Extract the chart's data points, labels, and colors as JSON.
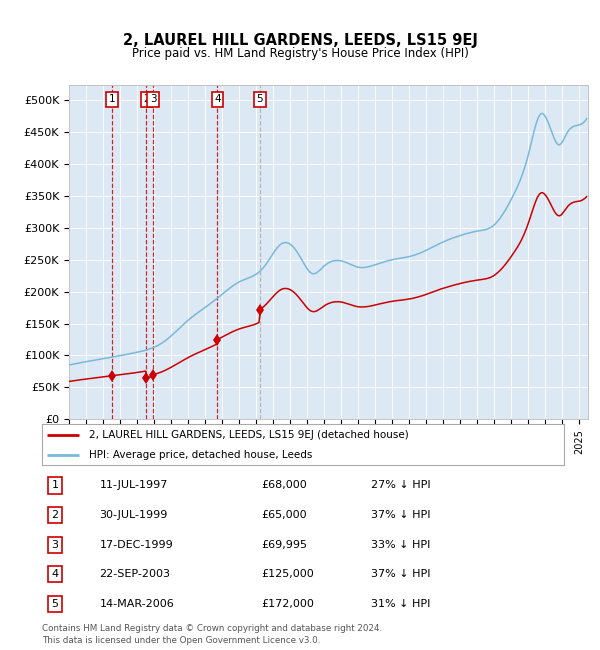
{
  "title": "2, LAUREL HILL GARDENS, LEEDS, LS15 9EJ",
  "subtitle": "Price paid vs. HM Land Registry's House Price Index (HPI)",
  "bg_color": "#dce9f5",
  "hpi_color": "#7ab8d9",
  "price_color": "#cc0000",
  "sale_marker_color": "#cc0000",
  "dashed_red": "#cc0000",
  "dashed_gray": "#aaaaaa",
  "yticks": [
    0,
    50000,
    100000,
    150000,
    200000,
    250000,
    300000,
    350000,
    400000,
    450000,
    500000
  ],
  "ytick_labels": [
    "£0",
    "£50K",
    "£100K",
    "£150K",
    "£200K",
    "£250K",
    "£300K",
    "£350K",
    "£400K",
    "£450K",
    "£500K"
  ],
  "sales": [
    {
      "num": 1,
      "date": "1997-07-11",
      "price": 68000
    },
    {
      "num": 2,
      "date": "1999-07-30",
      "price": 65000
    },
    {
      "num": 3,
      "date": "1999-12-17",
      "price": 69995
    },
    {
      "num": 4,
      "date": "2003-09-22",
      "price": 125000
    },
    {
      "num": 5,
      "date": "2006-03-14",
      "price": 172000
    }
  ],
  "sale_rows": [
    {
      "num": 1,
      "date": "11-JUL-1997",
      "price": "£68,000",
      "pct": "27% ↓ HPI"
    },
    {
      "num": 2,
      "date": "30-JUL-1999",
      "price": "£65,000",
      "pct": "37% ↓ HPI"
    },
    {
      "num": 3,
      "date": "17-DEC-1999",
      "price": "£69,995",
      "pct": "33% ↓ HPI"
    },
    {
      "num": 4,
      "date": "22-SEP-2003",
      "price": "£125,000",
      "pct": "37% ↓ HPI"
    },
    {
      "num": 5,
      "date": "14-MAR-2006",
      "price": "£172,000",
      "pct": "31% ↓ HPI"
    }
  ],
  "legend_label_price": "2, LAUREL HILL GARDENS, LEEDS, LS15 9EJ (detached house)",
  "legend_label_hpi": "HPI: Average price, detached house, Leeds",
  "footer": "Contains HM Land Registry data © Crown copyright and database right 2024.\nThis data is licensed under the Open Government Licence v3.0."
}
